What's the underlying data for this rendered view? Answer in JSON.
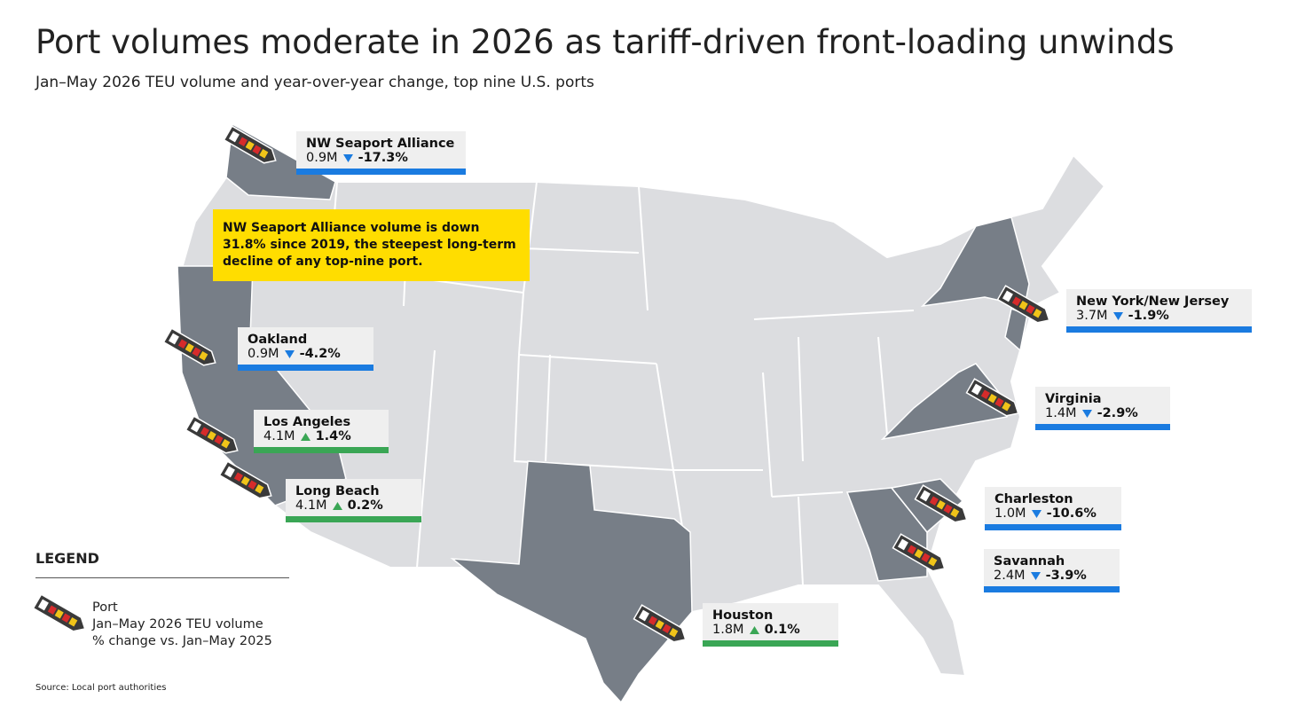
{
  "title": "Port volumes moderate in 2026 as tariff-driven front-loading unwinds",
  "subtitle": "Jan–May 2026 TEU volume and year-over-year change, top nine U.S. ports",
  "callout": "NW Seaport Alliance volume is down 31.8% since 2019, the steepest long-term decline of any top-nine port.",
  "ports": [
    {
      "name": "NW Seaport Alliance",
      "volume": "0.9M",
      "change": "-17.3%"
    },
    {
      "name": "Oakland",
      "volume": "0.9M",
      "change": "-4.2%"
    },
    {
      "name": "Los Angeles",
      "volume": "4.1M",
      "change": "1.4%"
    },
    {
      "name": "Long Beach",
      "volume": "4.1M",
      "change": "0.2%"
    },
    {
      "name": "New York/New Jersey",
      "volume": "3.7M",
      "change": "-1.9%"
    },
    {
      "name": "Virginia",
      "volume": "1.4M",
      "change": "-2.9%"
    },
    {
      "name": "Charleston",
      "volume": "1.0M",
      "change": "-10.6%"
    },
    {
      "name": "Savannah",
      "volume": "2.4M",
      "change": "-3.9%"
    },
    {
      "name": "Houston",
      "volume": "1.8M",
      "change": "0.1%"
    }
  ],
  "legend": {
    "title": "LEGEND",
    "items": [
      "Port",
      "Jan–May 2026 TEU volume",
      "% change vs. Jan–May 2025"
    ]
  },
  "source": "Source: Local port authorities"
}
